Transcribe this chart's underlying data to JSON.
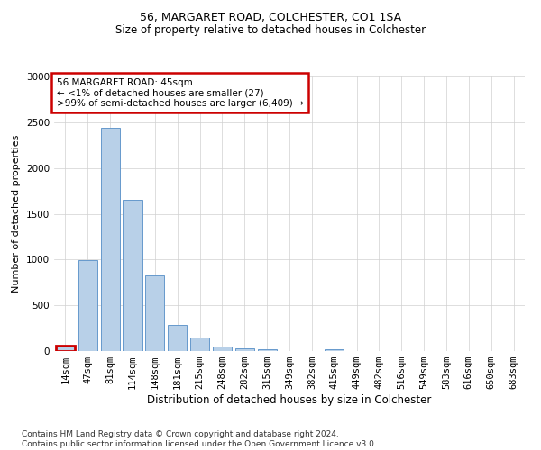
{
  "title": "56, MARGARET ROAD, COLCHESTER, CO1 1SA",
  "subtitle": "Size of property relative to detached houses in Colchester",
  "xlabel": "Distribution of detached houses by size in Colchester",
  "ylabel": "Number of detached properties",
  "footer_line1": "Contains HM Land Registry data © Crown copyright and database right 2024.",
  "footer_line2": "Contains public sector information licensed under the Open Government Licence v3.0.",
  "annotation_title": "56 MARGARET ROAD: 45sqm",
  "annotation_line2": "← <1% of detached houses are smaller (27)",
  "annotation_line3": ">99% of semi-detached houses are larger (6,409) →",
  "bar_labels": [
    "14sqm",
    "47sqm",
    "81sqm",
    "114sqm",
    "148sqm",
    "181sqm",
    "215sqm",
    "248sqm",
    "282sqm",
    "315sqm",
    "349sqm",
    "382sqm",
    "415sqm",
    "449sqm",
    "482sqm",
    "516sqm",
    "549sqm",
    "583sqm",
    "616sqm",
    "650sqm",
    "683sqm"
  ],
  "bar_values": [
    55,
    990,
    2440,
    1650,
    830,
    290,
    145,
    45,
    30,
    20,
    0,
    0,
    22,
    0,
    0,
    0,
    0,
    0,
    0,
    0,
    0
  ],
  "bar_color": "#b8d0e8",
  "bar_edge_color": "#6699cc",
  "highlight_bar_index": 0,
  "highlight_color": "#cc0000",
  "ylim": [
    0,
    3000
  ],
  "yticks": [
    0,
    500,
    1000,
    1500,
    2000,
    2500,
    3000
  ],
  "grid_color": "#d0d0d0",
  "background_color": "#ffffff",
  "annotation_box_color": "#ffffff",
  "annotation_box_edge": "#cc0000",
  "title_fontsize": 9,
  "subtitle_fontsize": 8.5,
  "ylabel_fontsize": 8,
  "xlabel_fontsize": 8.5,
  "tick_fontsize": 7.5,
  "annotation_fontsize": 7.5,
  "footer_fontsize": 6.5
}
